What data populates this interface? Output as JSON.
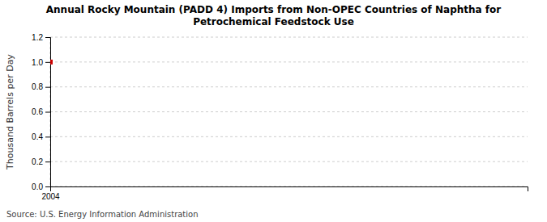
{
  "chart_data": {
    "type": "scatter",
    "title": "Annual Rocky Mountain (PADD 4) Imports from Non-OPEC Countries of Naphtha for\nPetrochemical Feedstock Use",
    "ylabel": "Thousand Barrels per Day",
    "source": "Source: U.S. Energy Information Administration",
    "x": [
      2004
    ],
    "values": [
      1.0
    ],
    "color": "#cc0000",
    "marker": "square",
    "xlim": [
      2004,
      2030
    ],
    "xticks": [
      2004
    ],
    "ylim": [
      0.0,
      1.2
    ],
    "yticks": [
      {
        "value": 0.0,
        "label": "0.0"
      },
      0.2,
      0.4,
      0.6,
      0.8,
      {
        "value": 1.0,
        "label": "1.0"
      },
      1.2
    ],
    "grid": true
  }
}
